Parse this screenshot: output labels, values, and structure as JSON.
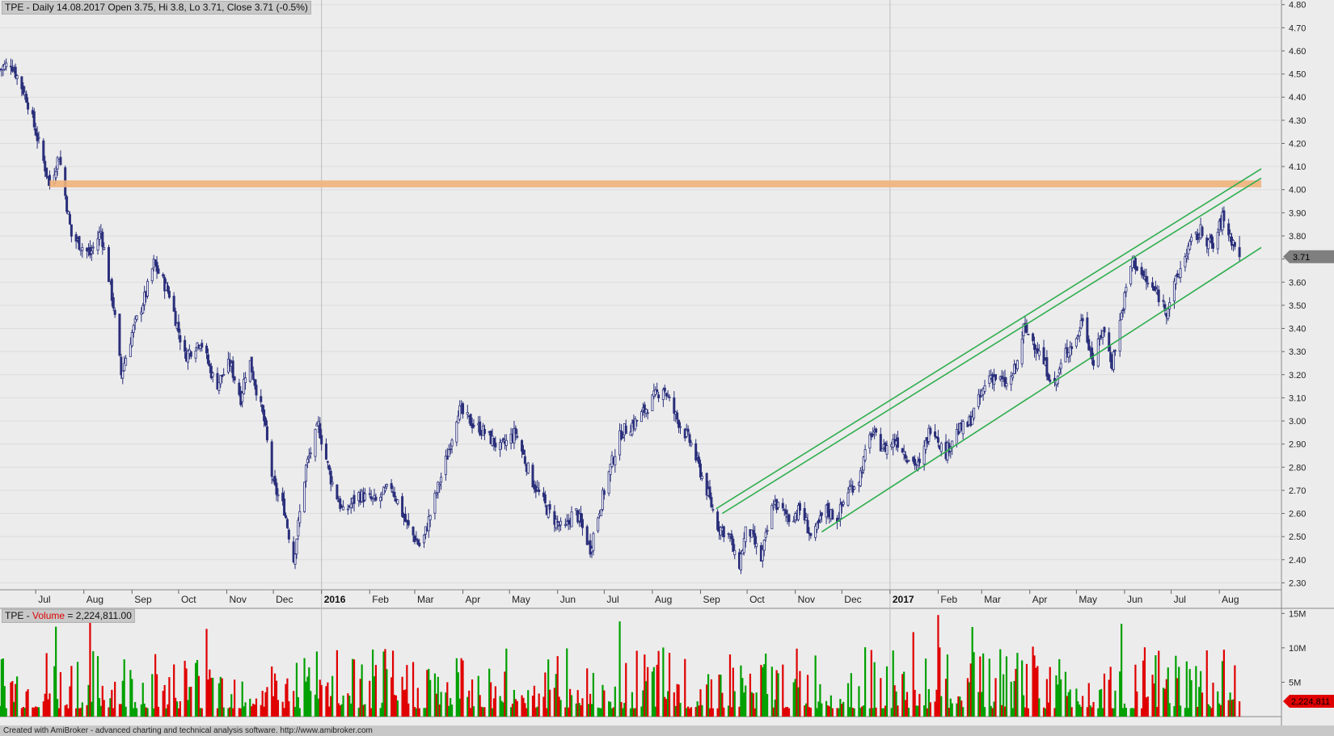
{
  "header": {
    "title": "TPE - Daily 14.08.2017 Open 3.75, Hi 3.8, Lo 3.71, Close 3.71 (-0.5%)"
  },
  "volume_header": {
    "ticker": "TPE - ",
    "label": "Volume",
    "value": " = 2,224,811.00"
  },
  "footer": {
    "text": "Created with AmiBroker - advanced charting and technical analysis software. http://www.amibroker.com"
  },
  "colors": {
    "up_volume": "#00a000",
    "down_volume": "#e00000",
    "candle": "#2a2f7a",
    "channel": "#2fae4e",
    "resistance": "#f0b27a",
    "last_price_badge": "#7f7f7f",
    "last_volume_badge": "#e00000"
  },
  "chart_data": [
    {
      "type": "candlestick",
      "ticker": "TPE",
      "y_ticks": [
        "2.30",
        "2.40",
        "2.50",
        "2.60",
        "2.70",
        "2.80",
        "2.90",
        "3.00",
        "3.10",
        "3.20",
        "3.30",
        "3.40",
        "3.50",
        "3.60",
        "3.70",
        "3.80",
        "3.90",
        "4.00",
        "4.10",
        "4.20",
        "4.30",
        "4.40",
        "4.50",
        "4.60",
        "4.70",
        "4.80"
      ],
      "ylim": [
        2.27,
        4.82
      ],
      "x_labels": [
        {
          "label": "Jul",
          "date": "2015-07-01",
          "year": false
        },
        {
          "label": "Aug",
          "date": "2015-08-01",
          "year": false
        },
        {
          "label": "Sep",
          "date": "2015-09-01",
          "year": false
        },
        {
          "label": "Oct",
          "date": "2015-10-01",
          "year": false
        },
        {
          "label": "Nov",
          "date": "2015-11-01",
          "year": false
        },
        {
          "label": "Dec",
          "date": "2015-12-01",
          "year": false
        },
        {
          "label": "2016",
          "date": "2016-01-01",
          "year": true
        },
        {
          "label": "Feb",
          "date": "2016-02-01",
          "year": false
        },
        {
          "label": "Mar",
          "date": "2016-03-01",
          "year": false
        },
        {
          "label": "Apr",
          "date": "2016-04-01",
          "year": false
        },
        {
          "label": "May",
          "date": "2016-05-01",
          "year": false
        },
        {
          "label": "Jun",
          "date": "2016-06-01",
          "year": false
        },
        {
          "label": "Jul",
          "date": "2016-07-01",
          "year": false
        },
        {
          "label": "Aug",
          "date": "2016-08-01",
          "year": false
        },
        {
          "label": "Sep",
          "date": "2016-09-01",
          "year": false
        },
        {
          "label": "Oct",
          "date": "2016-10-01",
          "year": false
        },
        {
          "label": "Nov",
          "date": "2016-11-01",
          "year": false
        },
        {
          "label": "Dec",
          "date": "2016-12-01",
          "year": false
        },
        {
          "label": "2017",
          "date": "2017-01-01",
          "year": true
        },
        {
          "label": "Feb",
          "date": "2017-02-01",
          "year": false
        },
        {
          "label": "Mar",
          "date": "2017-03-01",
          "year": false
        },
        {
          "label": "Apr",
          "date": "2017-04-01",
          "year": false
        },
        {
          "label": "May",
          "date": "2017-05-01",
          "year": false
        },
        {
          "label": "Jun",
          "date": "2017-06-01",
          "year": false
        },
        {
          "label": "Jul",
          "date": "2017-07-01",
          "year": false
        },
        {
          "label": "Aug",
          "date": "2017-08-01",
          "year": false
        }
      ],
      "x_range": [
        "2015-06-08",
        "2017-09-10"
      ],
      "price_path": [
        {
          "date": "2015-06-08",
          "close": 4.52
        },
        {
          "date": "2015-06-15",
          "close": 4.55
        },
        {
          "date": "2015-06-25",
          "close": 4.4
        },
        {
          "date": "2015-07-03",
          "close": 4.2
        },
        {
          "date": "2015-07-10",
          "close": 4.02
        },
        {
          "date": "2015-07-16",
          "close": 4.15
        },
        {
          "date": "2015-07-24",
          "close": 3.8
        },
        {
          "date": "2015-08-05",
          "close": 3.72
        },
        {
          "date": "2015-08-12",
          "close": 3.82
        },
        {
          "date": "2015-08-20",
          "close": 3.5
        },
        {
          "date": "2015-08-25",
          "close": 3.2
        },
        {
          "date": "2015-09-01",
          "close": 3.38
        },
        {
          "date": "2015-09-10",
          "close": 3.55
        },
        {
          "date": "2015-09-15",
          "close": 3.68
        },
        {
          "date": "2015-09-25",
          "close": 3.55
        },
        {
          "date": "2015-10-05",
          "close": 3.28
        },
        {
          "date": "2015-10-15",
          "close": 3.35
        },
        {
          "date": "2015-10-25",
          "close": 3.15
        },
        {
          "date": "2015-11-03",
          "close": 3.25
        },
        {
          "date": "2015-11-10",
          "close": 3.1
        },
        {
          "date": "2015-11-15",
          "close": 3.28
        },
        {
          "date": "2015-11-25",
          "close": 3.0
        },
        {
          "date": "2015-12-01",
          "close": 2.72
        },
        {
          "date": "2015-12-08",
          "close": 2.62
        },
        {
          "date": "2015-12-14",
          "close": 2.4
        },
        {
          "date": "2015-12-22",
          "close": 2.8
        },
        {
          "date": "2015-12-30",
          "close": 2.98
        },
        {
          "date": "2016-01-07",
          "close": 2.75
        },
        {
          "date": "2016-01-15",
          "close": 2.6
        },
        {
          "date": "2016-01-25",
          "close": 2.68
        },
        {
          "date": "2016-02-05",
          "close": 2.65
        },
        {
          "date": "2016-02-15",
          "close": 2.72
        },
        {
          "date": "2016-02-25",
          "close": 2.55
        },
        {
          "date": "2016-03-05",
          "close": 2.45
        },
        {
          "date": "2016-03-12",
          "close": 2.62
        },
        {
          "date": "2016-03-22",
          "close": 2.85
        },
        {
          "date": "2016-03-29",
          "close": 3.05
        },
        {
          "date": "2016-04-05",
          "close": 3.0
        },
        {
          "date": "2016-04-15",
          "close": 2.95
        },
        {
          "date": "2016-04-25",
          "close": 2.88
        },
        {
          "date": "2016-05-05",
          "close": 2.95
        },
        {
          "date": "2016-05-15",
          "close": 2.75
        },
        {
          "date": "2016-05-25",
          "close": 2.62
        },
        {
          "date": "2016-06-05",
          "close": 2.52
        },
        {
          "date": "2016-06-12",
          "close": 2.62
        },
        {
          "date": "2016-06-22",
          "close": 2.45
        },
        {
          "date": "2016-06-28",
          "close": 2.62
        },
        {
          "date": "2016-07-05",
          "close": 2.8
        },
        {
          "date": "2016-07-12",
          "close": 2.95
        },
        {
          "date": "2016-07-22",
          "close": 3.0
        },
        {
          "date": "2016-08-02",
          "close": 3.1
        },
        {
          "date": "2016-08-08",
          "close": 3.15
        },
        {
          "date": "2016-08-16",
          "close": 3.02
        },
        {
          "date": "2016-08-26",
          "close": 2.9
        },
        {
          "date": "2016-09-05",
          "close": 2.7
        },
        {
          "date": "2016-09-12",
          "close": 2.55
        },
        {
          "date": "2016-09-20",
          "close": 2.5
        },
        {
          "date": "2016-09-25",
          "close": 2.35
        },
        {
          "date": "2016-10-01",
          "close": 2.55
        },
        {
          "date": "2016-10-10",
          "close": 2.4
        },
        {
          "date": "2016-10-18",
          "close": 2.65
        },
        {
          "date": "2016-10-28",
          "close": 2.58
        },
        {
          "date": "2016-11-05",
          "close": 2.62
        },
        {
          "date": "2016-11-12",
          "close": 2.48
        },
        {
          "date": "2016-11-20",
          "close": 2.62
        },
        {
          "date": "2016-11-28",
          "close": 2.58
        },
        {
          "date": "2016-12-05",
          "close": 2.7
        },
        {
          "date": "2016-12-12",
          "close": 2.75
        },
        {
          "date": "2016-12-20",
          "close": 2.95
        },
        {
          "date": "2016-12-28",
          "close": 2.88
        },
        {
          "date": "2017-01-05",
          "close": 2.92
        },
        {
          "date": "2017-01-12",
          "close": 2.85
        },
        {
          "date": "2017-01-20",
          "close": 2.8
        },
        {
          "date": "2017-01-28",
          "close": 3.0
        },
        {
          "date": "2017-02-05",
          "close": 2.85
        },
        {
          "date": "2017-02-12",
          "close": 2.95
        },
        {
          "date": "2017-02-20",
          "close": 2.98
        },
        {
          "date": "2017-02-28",
          "close": 3.1
        },
        {
          "date": "2017-03-06",
          "close": 3.2
        },
        {
          "date": "2017-03-12",
          "close": 3.18
        },
        {
          "date": "2017-03-18",
          "close": 3.15
        },
        {
          "date": "2017-03-24",
          "close": 3.25
        },
        {
          "date": "2017-03-28",
          "close": 3.4
        },
        {
          "date": "2017-04-03",
          "close": 3.35
        },
        {
          "date": "2017-04-10",
          "close": 3.25
        },
        {
          "date": "2017-04-17",
          "close": 3.15
        },
        {
          "date": "2017-04-24",
          "close": 3.3
        },
        {
          "date": "2017-05-01",
          "close": 3.35
        },
        {
          "date": "2017-05-05",
          "close": 3.45
        },
        {
          "date": "2017-05-12",
          "close": 3.25
        },
        {
          "date": "2017-05-18",
          "close": 3.4
        },
        {
          "date": "2017-05-24",
          "close": 3.25
        },
        {
          "date": "2017-05-31",
          "close": 3.5
        },
        {
          "date": "2017-06-06",
          "close": 3.7
        },
        {
          "date": "2017-06-15",
          "close": 3.6
        },
        {
          "date": "2017-06-22",
          "close": 3.55
        },
        {
          "date": "2017-06-28",
          "close": 3.48
        },
        {
          "date": "2017-07-05",
          "close": 3.62
        },
        {
          "date": "2017-07-12",
          "close": 3.75
        },
        {
          "date": "2017-07-20",
          "close": 3.82
        },
        {
          "date": "2017-07-28",
          "close": 3.75
        },
        {
          "date": "2017-08-03",
          "close": 3.88
        },
        {
          "date": "2017-08-08",
          "close": 3.8
        },
        {
          "date": "2017-08-14",
          "close": 3.71
        }
      ],
      "resistance_band": {
        "low": 4.01,
        "high": 4.04,
        "start": "2015-07-10",
        "end": "2017-08-28"
      },
      "channel_lines": [
        {
          "name": "channel-upper-1",
          "from": {
            "date": "2016-09-11",
            "price": 2.62
          },
          "to": {
            "date": "2017-08-28",
            "price": 4.09
          }
        },
        {
          "name": "channel-upper-2",
          "from": {
            "date": "2016-09-15",
            "price": 2.6
          },
          "to": {
            "date": "2017-08-28",
            "price": 4.05
          }
        },
        {
          "name": "channel-lower",
          "from": {
            "date": "2016-11-18",
            "price": 2.52
          },
          "to": {
            "date": "2017-08-28",
            "price": 3.75
          }
        }
      ],
      "last_price": "3.71",
      "last_close": 3.71
    },
    {
      "type": "bar",
      "series_name": "Volume",
      "y_ticks": [
        {
          "label": "5M",
          "value": 5000000
        },
        {
          "label": "10M",
          "value": 10000000
        },
        {
          "label": "15M",
          "value": 15000000
        }
      ],
      "ylim": [
        0,
        15500000
      ],
      "last_value_label": "2,224,811",
      "last_value": 2224811,
      "seed": 7
    }
  ]
}
